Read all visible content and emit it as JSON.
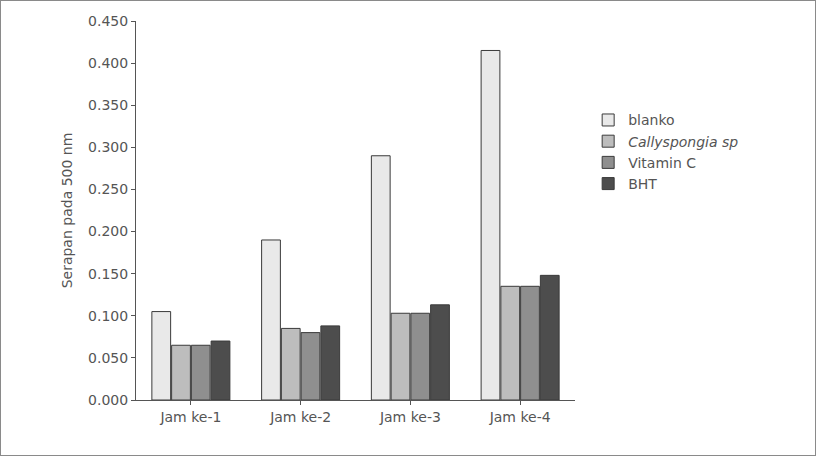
{
  "chart_data": {
    "type": "bar",
    "y_label": "Serapan pada 500 nm",
    "categories": [
      "Jam ke-1",
      "Jam ke-2",
      "Jam ke-3",
      "Jam ke-4"
    ],
    "series": [
      {
        "name": "blanko",
        "color": "#e9e9e9",
        "values": [
          0.105,
          0.19,
          0.29,
          0.415
        ]
      },
      {
        "name": "Callyspongia sp",
        "color": "#bdbdbd",
        "values": [
          0.065,
          0.085,
          0.103,
          0.135
        ]
      },
      {
        "name": "Vitamin C",
        "color": "#8f8f8f",
        "values": [
          0.065,
          0.08,
          0.103,
          0.135
        ]
      },
      {
        "name": "BHT",
        "color": "#4d4d4d",
        "values": [
          0.07,
          0.088,
          0.113,
          0.148
        ]
      }
    ],
    "ylim": [
      0,
      0.45
    ],
    "yticks": [
      {
        "value": 0,
        "label": "0.000"
      },
      {
        "value": 0.05,
        "label": "0.050"
      },
      {
        "value": 0.1,
        "label": "0.100"
      },
      {
        "value": 0.15,
        "label": "0.150"
      },
      {
        "value": 0.2,
        "label": "0.200"
      },
      {
        "value": 0.25,
        "label": "0.250"
      },
      {
        "value": 0.3,
        "label": "0.300"
      },
      {
        "value": 0.35,
        "label": "0.350"
      },
      {
        "value": 0.4,
        "label": "0.400"
      },
      {
        "value": 0.45,
        "label": "0.450"
      }
    ],
    "grid": false,
    "legend": "right"
  }
}
